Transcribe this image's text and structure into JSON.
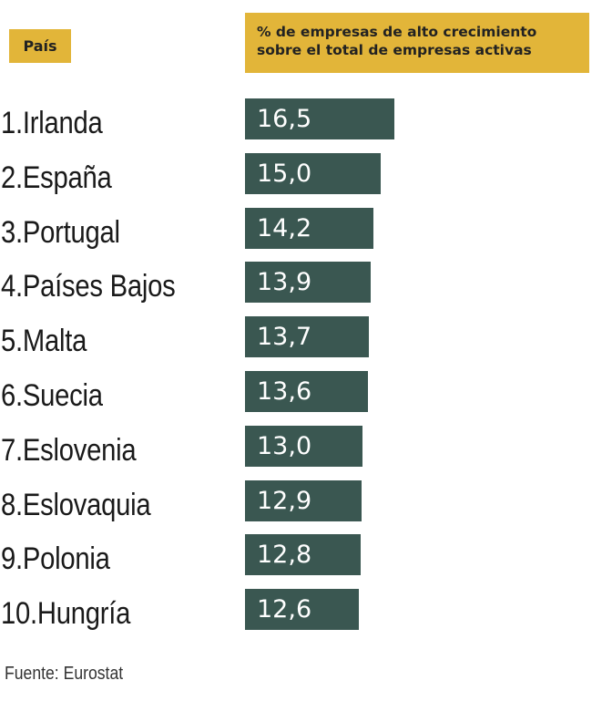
{
  "header": {
    "country_col": "País",
    "metric_col_line1": "% de empresas de alto crecimiento",
    "metric_col_line2": "sobre el total de empresas activas"
  },
  "colors": {
    "header_bg": "#e2b539",
    "bar": "#3a5751",
    "bar_text": "#ffffff"
  },
  "chart_data": {
    "type": "bar",
    "orientation": "horizontal",
    "title": "",
    "xlabel": "% de empresas de alto crecimiento sobre el total de empresas activas",
    "ylabel": "País",
    "categories": [
      "1.Irlanda",
      "2.España",
      "3.Portugal",
      "4.Países Bajos",
      "5.Malta",
      "6.Suecia",
      "7.Eslovenia",
      "8.Eslovaquia",
      "9.Polonia",
      "10.Hungría"
    ],
    "values": [
      16.5,
      15.0,
      14.2,
      13.9,
      13.7,
      13.6,
      13.0,
      12.9,
      12.8,
      12.6
    ],
    "value_labels": [
      "16,5",
      "15,0",
      "14,2",
      "13,9",
      "13,7",
      "13,6",
      "13,0",
      "12,9",
      "12,8",
      "12,6"
    ],
    "xlim": [
      0,
      16.5
    ],
    "grid": false,
    "legend": "none"
  },
  "source": "Fuente: Eurostat"
}
